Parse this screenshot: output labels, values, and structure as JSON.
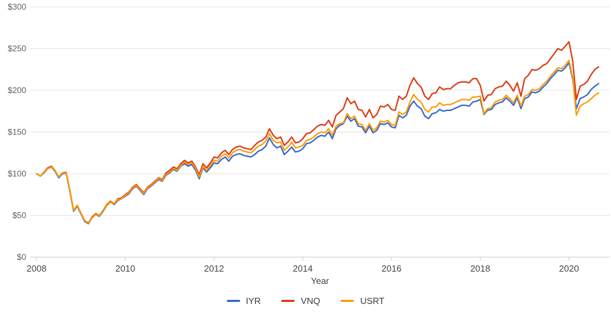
{
  "chart_data": {
    "type": "line",
    "title": "",
    "xlabel": "Year",
    "ylabel": "",
    "ylim": [
      0,
      300
    ],
    "grid": "horizontal",
    "legend_position": "bottom",
    "x_frequency": "monthly",
    "x_start_month": "2008-01",
    "x_end_month": "2020-09",
    "points_per_series": 153,
    "y_ticks": [
      0,
      50,
      100,
      150,
      200,
      250,
      300
    ],
    "y_tick_labels": [
      "$0",
      "$50",
      "$100",
      "$150",
      "$200",
      "$250",
      "$300"
    ],
    "x_ticks_years": [
      2008,
      2010,
      2012,
      2014,
      2016,
      2018,
      2020
    ],
    "x_tick_labels": [
      "2008",
      "2010",
      "2012",
      "2014",
      "2016",
      "2018",
      "2020"
    ],
    "colors": {
      "IYR": "#3366CC",
      "VNQ": "#DC3912",
      "USRT": "#FF9900",
      "gridline": "#e6e6e6",
      "axis_line": "#cccccc",
      "y_tick_label": "#616161",
      "x_tick_label": "#444444"
    },
    "series": [
      {
        "name": "IYR",
        "color": "#3366CC",
        "values": [
          100,
          97,
          101,
          106,
          108,
          103,
          95,
          100,
          101,
          79,
          55,
          61,
          52,
          43,
          40,
          47,
          51,
          49,
          55,
          62,
          66,
          63,
          68,
          70,
          73,
          76,
          82,
          85,
          80,
          75,
          82,
          85,
          89,
          93,
          91,
          98,
          101,
          105,
          103,
          109,
          112,
          109,
          111,
          104,
          94,
          107,
          102,
          107,
          113,
          112,
          117,
          120,
          115,
          121,
          123,
          124,
          122,
          121,
          120,
          123,
          127,
          129,
          133,
          143,
          135,
          131,
          133,
          123,
          127,
          132,
          126,
          127,
          130,
          136,
          137,
          140,
          144,
          146,
          145,
          150,
          142,
          154,
          158,
          160,
          169,
          163,
          166,
          157,
          156,
          149,
          157,
          149,
          152,
          160,
          159,
          161,
          156,
          155,
          170,
          167,
          170,
          181,
          187,
          181,
          178,
          169,
          166,
          172,
          173,
          177,
          175,
          176,
          176,
          178,
          180,
          182,
          182,
          181,
          186,
          187,
          189,
          171,
          176,
          177,
          183,
          185,
          186,
          191,
          187,
          182,
          191,
          178,
          190,
          192,
          198,
          197,
          199,
          204,
          208,
          214,
          219,
          224,
          223,
          227,
          233,
          213,
          178,
          190,
          192,
          195,
          201,
          205,
          208
        ]
      },
      {
        "name": "VNQ",
        "color": "#DC3912",
        "values": [
          100,
          97,
          102,
          107,
          109,
          104,
          96,
          101,
          102,
          80,
          56,
          62,
          53,
          44,
          41,
          48,
          52,
          50,
          56,
          63,
          67,
          64,
          70,
          71,
          75,
          78,
          84,
          87,
          82,
          77,
          84,
          87,
          91,
          95,
          93,
          101,
          104,
          108,
          106,
          112,
          116,
          113,
          115,
          108,
          99,
          112,
          107,
          113,
          120,
          119,
          125,
          128,
          123,
          129,
          132,
          133,
          131,
          130,
          129,
          134,
          138,
          140,
          144,
          154,
          146,
          142,
          144,
          134,
          138,
          144,
          137,
          138,
          142,
          148,
          149,
          153,
          157,
          159,
          158,
          164,
          156,
          170,
          174,
          178,
          191,
          184,
          187,
          177,
          176,
          168,
          177,
          167,
          171,
          181,
          180,
          183,
          177,
          176,
          193,
          189,
          193,
          206,
          215,
          208,
          204,
          193,
          189,
          196,
          197,
          204,
          201,
          202,
          202,
          206,
          209,
          210,
          210,
          209,
          214,
          214,
          206,
          187,
          194,
          195,
          202,
          204,
          205,
          211,
          206,
          199,
          209,
          193,
          214,
          218,
          225,
          224,
          226,
          230,
          232,
          238,
          244,
          250,
          248,
          253,
          258,
          235,
          189,
          205,
          207,
          211,
          219,
          225,
          228
        ]
      },
      {
        "name": "USRT",
        "color": "#FF9900",
        "values": [
          100,
          97,
          102,
          106,
          108,
          104,
          96,
          101,
          102,
          80,
          56,
          62,
          53,
          44,
          41,
          47,
          51,
          50,
          56,
          62,
          66,
          64,
          69,
          70,
          74,
          77,
          83,
          86,
          81,
          76,
          83,
          86,
          90,
          94,
          92,
          99,
          102,
          106,
          104,
          110,
          114,
          111,
          113,
          106,
          96,
          109,
          104,
          110,
          116,
          115,
          121,
          124,
          119,
          125,
          128,
          129,
          127,
          126,
          125,
          129,
          133,
          135,
          139,
          148,
          140,
          137,
          138,
          128,
          132,
          138,
          131,
          132,
          134,
          140,
          141,
          144,
          148,
          150,
          149,
          154,
          146,
          157,
          160,
          161,
          172,
          166,
          169,
          160,
          159,
          152,
          160,
          152,
          155,
          163,
          162,
          164,
          159,
          158,
          174,
          171,
          174,
          186,
          195,
          189,
          186,
          177,
          174,
          180,
          180,
          185,
          182,
          183,
          183,
          185,
          187,
          189,
          189,
          188,
          192,
          192,
          193,
          172,
          178,
          179,
          186,
          188,
          189,
          194,
          190,
          185,
          194,
          181,
          193,
          195,
          201,
          200,
          202,
          207,
          211,
          217,
          222,
          227,
          226,
          230,
          236,
          215,
          170,
          181,
          184,
          186,
          190,
          194,
          197
        ]
      }
    ]
  }
}
